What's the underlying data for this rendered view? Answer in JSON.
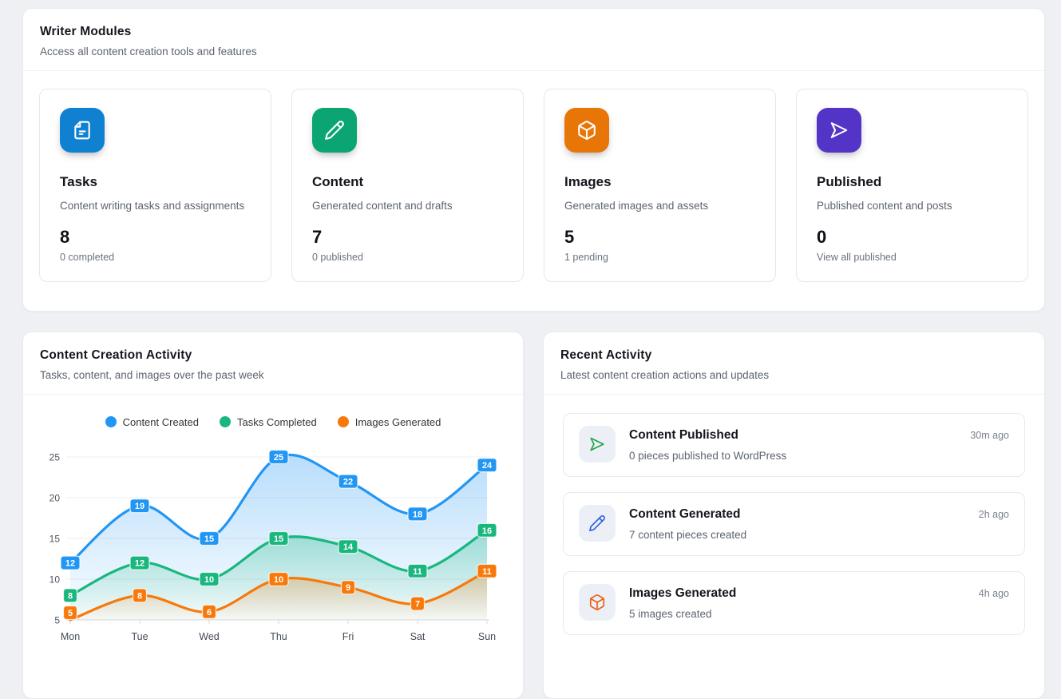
{
  "theme": {
    "page_bg": "#eef0f4",
    "panel_border": "#e9ebf0",
    "title_color": "#16161e",
    "muted_color": "#5d6470"
  },
  "writer_modules": {
    "title": "Writer Modules",
    "subtitle": "Access all content creation tools and features",
    "cards": [
      {
        "title": "Tasks",
        "description": "Content writing tasks and assignments",
        "value": "8",
        "meta": "0 completed",
        "icon": "document",
        "color": "#1081d0"
      },
      {
        "title": "Content",
        "description": "Generated content and drafts",
        "value": "7",
        "meta": "0 published",
        "icon": "pencil",
        "color": "#0ba574"
      },
      {
        "title": "Images",
        "description": "Generated images and assets",
        "value": "5",
        "meta": "1 pending",
        "icon": "cube",
        "color": "#e87607"
      },
      {
        "title": "Published",
        "description": "Published content and posts",
        "value": "0",
        "meta": "View all published",
        "icon": "send",
        "color": "#5434c6"
      }
    ]
  },
  "chart_panel": {
    "title": "Content Creation Activity",
    "subtitle": "Tasks, content, and images over the past week"
  },
  "chart_data": {
    "type": "line",
    "title": "Content Creation Activity",
    "x": [
      "Mon",
      "Tue",
      "Wed",
      "Thu",
      "Fri",
      "Sat",
      "Sun"
    ],
    "series": [
      {
        "name": "Content Created",
        "color": "#2196f3",
        "values": [
          12,
          19,
          15,
          25,
          22,
          18,
          24
        ]
      },
      {
        "name": "Tasks Completed",
        "color": "#19b77e",
        "values": [
          8,
          12,
          10,
          15,
          14,
          11,
          16
        ]
      },
      {
        "name": "Images Generated",
        "color": "#f7790b",
        "values": [
          5,
          8,
          6,
          10,
          9,
          7,
          11
        ]
      }
    ],
    "ylim": [
      5,
      25
    ],
    "yticks": [
      5,
      10,
      15,
      20,
      25
    ],
    "smooth": true,
    "area": true,
    "grid": "horizontal",
    "legend_position": "top",
    "data_labels": true
  },
  "recent_activity": {
    "title": "Recent Activity",
    "subtitle": "Latest content creation actions and updates",
    "items": [
      {
        "title": "Content Published",
        "description": "0 pieces published to WordPress",
        "time": "30m ago",
        "icon": "send",
        "color": "#22a24a"
      },
      {
        "title": "Content Generated",
        "description": "7 content pieces created",
        "time": "2h ago",
        "icon": "pencil",
        "color": "#2f62e0"
      },
      {
        "title": "Images Generated",
        "description": "5 images created",
        "time": "4h ago",
        "icon": "cube",
        "color": "#ea5f17"
      }
    ]
  }
}
